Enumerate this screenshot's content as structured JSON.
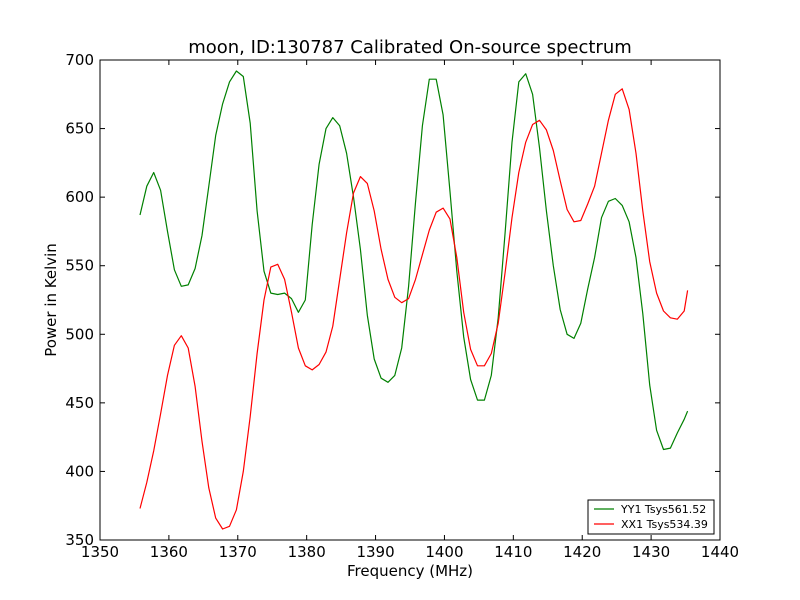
{
  "chart_data": {
    "type": "line",
    "title": "moon, ID:130787 Calibrated On-source spectrum",
    "xlabel": "Frequency (MHz)",
    "ylabel": "Power in Kelvin",
    "xlim": [
      1350,
      1440
    ],
    "ylim": [
      350,
      700
    ],
    "xticks": [
      "1350",
      "1360",
      "1370",
      "1380",
      "1390",
      "1400",
      "1410",
      "1420",
      "1430",
      "1440"
    ],
    "yticks": [
      "350",
      "400",
      "450",
      "500",
      "550",
      "600",
      "650",
      "700"
    ],
    "grid": false,
    "legend_position": "bottom-right",
    "series": [
      {
        "name": "YY1 Tsys561.52",
        "color": "#008000",
        "points": [
          [
            1355.8,
            587
          ],
          [
            1356.8,
            608
          ],
          [
            1357.8,
            618
          ],
          [
            1358.8,
            605
          ],
          [
            1359.8,
            575
          ],
          [
            1360.8,
            547
          ],
          [
            1361.8,
            535
          ],
          [
            1362.8,
            536
          ],
          [
            1363.8,
            548
          ],
          [
            1364.8,
            572
          ],
          [
            1365.8,
            608
          ],
          [
            1366.8,
            645
          ],
          [
            1367.8,
            668
          ],
          [
            1368.8,
            684
          ],
          [
            1369.8,
            692
          ],
          [
            1370.8,
            688
          ],
          [
            1371.8,
            654
          ],
          [
            1372.8,
            590
          ],
          [
            1373.8,
            546
          ],
          [
            1374.8,
            530
          ],
          [
            1375.8,
            529
          ],
          [
            1376.8,
            530
          ],
          [
            1377.8,
            526
          ],
          [
            1378.8,
            516
          ],
          [
            1379.8,
            525
          ],
          [
            1380.8,
            580
          ],
          [
            1381.8,
            624
          ],
          [
            1382.8,
            650
          ],
          [
            1383.8,
            658
          ],
          [
            1384.8,
            652
          ],
          [
            1385.8,
            632
          ],
          [
            1386.8,
            600
          ],
          [
            1387.8,
            562
          ],
          [
            1388.8,
            514
          ],
          [
            1389.8,
            482
          ],
          [
            1390.8,
            468
          ],
          [
            1391.8,
            465
          ],
          [
            1392.8,
            470
          ],
          [
            1393.8,
            490
          ],
          [
            1394.8,
            535
          ],
          [
            1395.8,
            596
          ],
          [
            1396.8,
            652
          ],
          [
            1397.8,
            686
          ],
          [
            1398.8,
            686
          ],
          [
            1399.8,
            660
          ],
          [
            1400.8,
            604
          ],
          [
            1401.8,
            546
          ],
          [
            1402.8,
            498
          ],
          [
            1403.8,
            467
          ],
          [
            1404.8,
            452
          ],
          [
            1405.8,
            452
          ],
          [
            1406.8,
            470
          ],
          [
            1407.8,
            512
          ],
          [
            1408.8,
            574
          ],
          [
            1409.8,
            640
          ],
          [
            1410.8,
            684
          ],
          [
            1411.8,
            690
          ],
          [
            1412.8,
            675
          ],
          [
            1413.8,
            636
          ],
          [
            1414.8,
            590
          ],
          [
            1415.8,
            550
          ],
          [
            1416.8,
            518
          ],
          [
            1417.8,
            500
          ],
          [
            1418.8,
            497
          ],
          [
            1419.8,
            508
          ],
          [
            1420.8,
            533
          ],
          [
            1421.8,
            556
          ],
          [
            1422.8,
            585
          ],
          [
            1423.8,
            597
          ],
          [
            1424.8,
            599
          ],
          [
            1425.8,
            594
          ],
          [
            1426.8,
            582
          ],
          [
            1427.8,
            556
          ],
          [
            1428.8,
            515
          ],
          [
            1429.8,
            463
          ],
          [
            1430.8,
            430
          ],
          [
            1431.8,
            416
          ],
          [
            1432.8,
            417
          ],
          [
            1433.8,
            428
          ],
          [
            1434.8,
            438
          ],
          [
            1435.3,
            444
          ]
        ]
      },
      {
        "name": "XX1 Tsys534.39",
        "color": "#ff0000",
        "points": [
          [
            1355.8,
            373
          ],
          [
            1356.8,
            392
          ],
          [
            1357.8,
            415
          ],
          [
            1358.8,
            442
          ],
          [
            1359.8,
            470
          ],
          [
            1360.8,
            492
          ],
          [
            1361.8,
            499
          ],
          [
            1362.8,
            490
          ],
          [
            1363.8,
            462
          ],
          [
            1364.8,
            422
          ],
          [
            1365.8,
            388
          ],
          [
            1366.8,
            366
          ],
          [
            1367.8,
            358
          ],
          [
            1368.8,
            360
          ],
          [
            1369.8,
            372
          ],
          [
            1370.8,
            400
          ],
          [
            1371.8,
            440
          ],
          [
            1372.8,
            486
          ],
          [
            1373.8,
            525
          ],
          [
            1374.8,
            549
          ],
          [
            1375.8,
            551
          ],
          [
            1376.8,
            540
          ],
          [
            1377.8,
            516
          ],
          [
            1378.8,
            490
          ],
          [
            1379.8,
            477
          ],
          [
            1380.8,
            474
          ],
          [
            1381.8,
            478
          ],
          [
            1382.8,
            487
          ],
          [
            1383.8,
            506
          ],
          [
            1384.8,
            540
          ],
          [
            1385.8,
            574
          ],
          [
            1386.8,
            603
          ],
          [
            1387.8,
            615
          ],
          [
            1388.8,
            610
          ],
          [
            1389.8,
            590
          ],
          [
            1390.8,
            562
          ],
          [
            1391.8,
            540
          ],
          [
            1392.8,
            527
          ],
          [
            1393.8,
            523
          ],
          [
            1394.8,
            526
          ],
          [
            1395.8,
            540
          ],
          [
            1396.8,
            558
          ],
          [
            1397.8,
            576
          ],
          [
            1398.8,
            589
          ],
          [
            1399.8,
            592
          ],
          [
            1400.8,
            584
          ],
          [
            1401.8,
            556
          ],
          [
            1402.8,
            516
          ],
          [
            1403.8,
            489
          ],
          [
            1404.8,
            477
          ],
          [
            1405.8,
            477
          ],
          [
            1406.8,
            486
          ],
          [
            1407.8,
            508
          ],
          [
            1408.8,
            545
          ],
          [
            1409.8,
            585
          ],
          [
            1410.8,
            618
          ],
          [
            1411.8,
            640
          ],
          [
            1412.8,
            653
          ],
          [
            1413.8,
            656
          ],
          [
            1414.8,
            649
          ],
          [
            1415.8,
            634
          ],
          [
            1416.8,
            612
          ],
          [
            1417.8,
            591
          ],
          [
            1418.8,
            582
          ],
          [
            1419.8,
            583
          ],
          [
            1420.8,
            595
          ],
          [
            1421.8,
            608
          ],
          [
            1422.8,
            632
          ],
          [
            1423.8,
            656
          ],
          [
            1424.8,
            675
          ],
          [
            1425.8,
            679
          ],
          [
            1426.8,
            664
          ],
          [
            1427.8,
            632
          ],
          [
            1428.8,
            590
          ],
          [
            1429.8,
            553
          ],
          [
            1430.8,
            530
          ],
          [
            1431.8,
            517
          ],
          [
            1432.8,
            512
          ],
          [
            1433.8,
            511
          ],
          [
            1434.8,
            517
          ],
          [
            1435.3,
            532
          ]
        ]
      }
    ]
  }
}
